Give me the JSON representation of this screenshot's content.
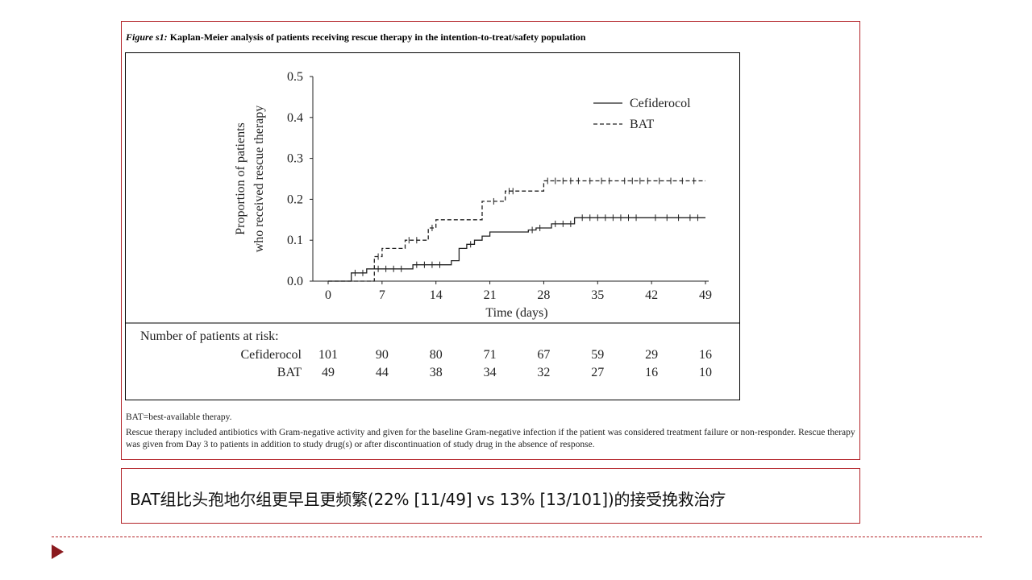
{
  "figure": {
    "title_label": "Figure s1:",
    "title_text": " Kaplan-Meier analysis of patients receiving rescue therapy in the intention-to-treat/safety population",
    "risk_table": {
      "heading": "Number of patients at risk:",
      "rows": [
        {
          "name": "Cefiderocol",
          "values": [
            "101",
            "90",
            "80",
            "71",
            "67",
            "59",
            "29",
            "16"
          ]
        },
        {
          "name": "BAT",
          "values": [
            "49",
            "44",
            "38",
            "34",
            "32",
            "27",
            "16",
            "10"
          ]
        }
      ]
    },
    "footnotes": [
      "BAT=best-available therapy.",
      "Rescue therapy included antibiotics with Gram-negative activity and given for the baseline Gram-negative infection if the patient was considered treatment failure or non-responder. Rescue therapy was given from Day 3 to patients in addition to study drug(s) or after discontinuation of study drug in the absence of response."
    ]
  },
  "chart_data": {
    "type": "line",
    "title": "",
    "xlabel": "Time (days)",
    "ylabel_line1": "Proportion of patients",
    "ylabel_line2": "who received rescue therapy",
    "xlim": [
      0,
      49
    ],
    "ylim": [
      0,
      0.5
    ],
    "x_ticks": [
      0,
      7,
      14,
      21,
      28,
      35,
      42,
      49
    ],
    "y_ticks": [
      0.0,
      0.1,
      0.2,
      0.3,
      0.4,
      0.5
    ],
    "y_tick_labels": [
      "0.0",
      "0.1",
      "0.2",
      "0.3",
      "0.4",
      "0.5"
    ],
    "legend_position": "top-right",
    "series": [
      {
        "name": "Cefiderocol",
        "style": "solid",
        "steps": [
          [
            0,
            0
          ],
          [
            3,
            0
          ],
          [
            3,
            0.02
          ],
          [
            5,
            0.02
          ],
          [
            5,
            0.03
          ],
          [
            11,
            0.03
          ],
          [
            11,
            0.04
          ],
          [
            16,
            0.04
          ],
          [
            16,
            0.05
          ],
          [
            17,
            0.05
          ],
          [
            17,
            0.08
          ],
          [
            18,
            0.08
          ],
          [
            18,
            0.09
          ],
          [
            19,
            0.09
          ],
          [
            19,
            0.1
          ],
          [
            20,
            0.1
          ],
          [
            20,
            0.11
          ],
          [
            21,
            0.11
          ],
          [
            21,
            0.12
          ],
          [
            26,
            0.12
          ],
          [
            26,
            0.125
          ],
          [
            27,
            0.125
          ],
          [
            27,
            0.13
          ],
          [
            29,
            0.13
          ],
          [
            29,
            0.14
          ],
          [
            32,
            0.14
          ],
          [
            32,
            0.155
          ],
          [
            49,
            0.155
          ]
        ],
        "censor_x": [
          3.5,
          4.5,
          6.5,
          7.5,
          8.5,
          9.5,
          11.5,
          12.5,
          13.5,
          14.5,
          18.5,
          26.5,
          27.5,
          29.5,
          30.5,
          31.5,
          33,
          34,
          35,
          36,
          37,
          38,
          39,
          40,
          42.5,
          44,
          45.5,
          47,
          48
        ]
      },
      {
        "name": "BAT",
        "style": "dashed",
        "steps": [
          [
            0,
            0
          ],
          [
            6,
            0
          ],
          [
            6,
            0.06
          ],
          [
            7,
            0.06
          ],
          [
            7,
            0.08
          ],
          [
            10,
            0.08
          ],
          [
            10,
            0.1
          ],
          [
            13,
            0.1
          ],
          [
            13,
            0.13
          ],
          [
            14,
            0.13
          ],
          [
            14,
            0.15
          ],
          [
            20,
            0.15
          ],
          [
            20,
            0.195
          ],
          [
            23,
            0.195
          ],
          [
            23,
            0.22
          ],
          [
            28,
            0.22
          ],
          [
            28,
            0.245
          ],
          [
            49,
            0.245
          ]
        ],
        "censor_x": [
          6.5,
          10.5,
          11.5,
          13.5,
          21.5,
          23.5,
          24,
          28.5,
          29.5,
          30.5,
          31.5,
          32.5,
          34,
          35.5,
          36.5,
          38.5,
          39.5,
          40.5,
          41.5,
          43,
          44.5,
          46,
          47.5
        ]
      }
    ]
  },
  "caption": {
    "text": "BAT组比头孢地尔组更早且更频繁(22% [11/49] vs 13% [13/101])的接受挽救治疗"
  },
  "colors": {
    "frame_border": "#b22227",
    "arrow": "#8b1a1f",
    "plot_line": "#222222"
  }
}
